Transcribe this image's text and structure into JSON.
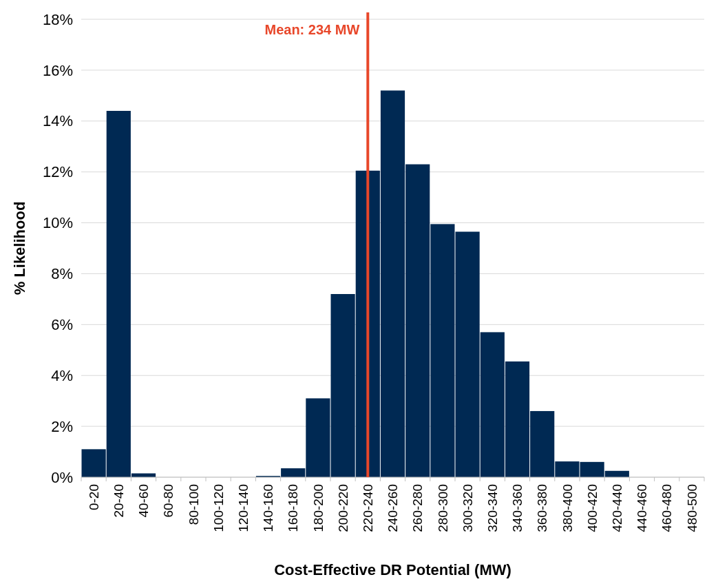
{
  "chart_data": {
    "type": "bar",
    "xlabel": "Cost-Effective DR Potential (MW)",
    "ylabel": "% Likelihood",
    "categories": [
      "0-20",
      "20-40",
      "40-60",
      "60-80",
      "80-100",
      "100-120",
      "120-140",
      "140-160",
      "160-180",
      "180-200",
      "200-220",
      "220-240",
      "240-260",
      "260-280",
      "280-300",
      "300-320",
      "320-340",
      "340-360",
      "360-380",
      "380-400",
      "400-420",
      "420-440",
      "440-460",
      "460-480",
      "480-500"
    ],
    "values": [
      1.1,
      14.4,
      0.15,
      0,
      0,
      0,
      0,
      0.05,
      0.35,
      3.1,
      7.2,
      12.05,
      15.2,
      12.3,
      9.95,
      9.65,
      5.7,
      4.55,
      2.6,
      0.62,
      0.6,
      0.25,
      0,
      0,
      0
    ],
    "color": "#002953",
    "ylim": [
      0,
      18
    ],
    "yticks": [
      {
        "value": 0,
        "label": "0%"
      },
      {
        "value": 2,
        "label": "2%"
      },
      {
        "value": 4,
        "label": "4%"
      },
      {
        "value": 6,
        "label": "6%"
      },
      {
        "value": 8,
        "label": "8%"
      },
      {
        "value": 10,
        "label": "10%"
      },
      {
        "value": 12,
        "label": "12%"
      },
      {
        "value": 14,
        "label": "14%"
      },
      {
        "value": 16,
        "label": "16%"
      },
      {
        "value": 18,
        "label": "18%"
      }
    ],
    "grid": "y",
    "ref_lines": [
      {
        "axis": "x",
        "value": "220-240",
        "label": "Mean: 234 MW",
        "color": "#e8472a"
      }
    ]
  }
}
